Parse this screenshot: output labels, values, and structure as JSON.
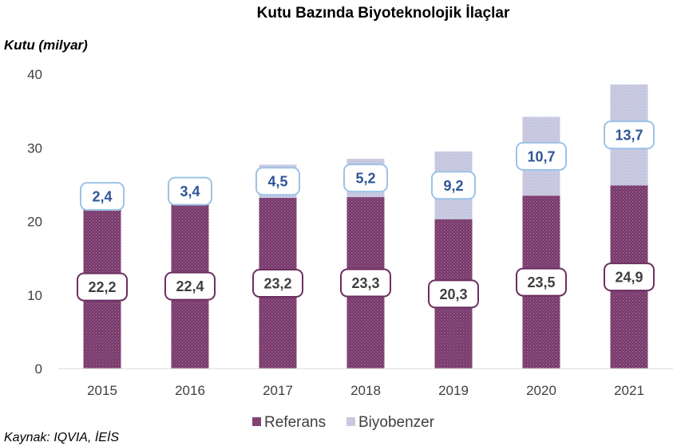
{
  "chart_data": {
    "type": "bar",
    "stacked": true,
    "title": "Kutu Bazında Biyoteknolojik İlaçlar",
    "ylabel": "Kutu (milyar)",
    "xlabel": "",
    "categories": [
      "2015",
      "2016",
      "2017",
      "2018",
      "2019",
      "2020",
      "2021"
    ],
    "ylim": [
      0,
      40
    ],
    "yticks": [
      "0",
      "10",
      "20",
      "30",
      "40"
    ],
    "series": [
      {
        "name": "Referans",
        "color": "#7b3a6e",
        "values": [
          22.2,
          22.4,
          23.2,
          23.3,
          20.3,
          23.5,
          24.9
        ],
        "labels": [
          "22,2",
          "22,4",
          "23,2",
          "23,3",
          "20,3",
          "23,5",
          "24,9"
        ]
      },
      {
        "name": "Biyobenzer",
        "color": "#c9cde3",
        "values": [
          2.4,
          3.4,
          4.5,
          5.2,
          9.2,
          10.7,
          13.7
        ],
        "labels": [
          "2,4",
          "3,4",
          "4,5",
          "5,2",
          "9,2",
          "10,7",
          "13,7"
        ]
      }
    ],
    "legend_position": "bottom",
    "grid": false
  },
  "source_note": "Kaynak: IQVIA, İEİS"
}
